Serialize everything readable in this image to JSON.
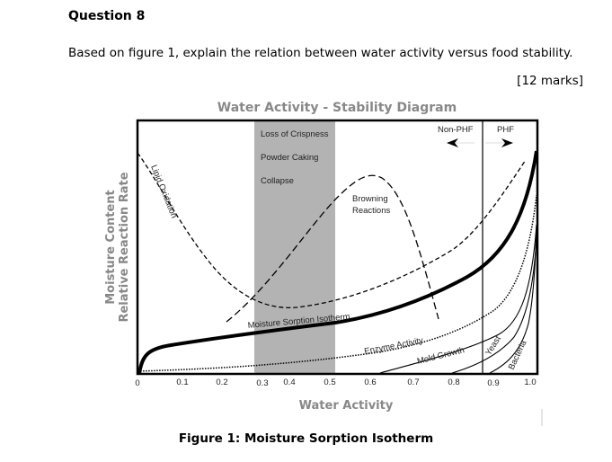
{
  "question": {
    "title": "Question 8",
    "text": "Based on figure 1, explain the relation between water activity versus food stability.",
    "marks": "[12 marks]"
  },
  "figure": {
    "title": "Water Activity - Stability Diagram",
    "xlabel": "Water Activity",
    "ylabel_line1": "Moisture Content",
    "ylabel_line2": "Relative Reaction Rate",
    "xticks": [
      "0",
      "0.1",
      "0.2",
      "0.3",
      "0.4",
      "0.5",
      "0.6",
      "0.7",
      "0.8",
      "0.9",
      "1.0"
    ],
    "band_labels": [
      "Loss of Crispness",
      "Powder Caking",
      "Collapse"
    ],
    "browning": [
      "Browning",
      "Reactions"
    ],
    "lipid": "Lipid Oxidation",
    "isotherm": "Moisture Sorption Isotherm",
    "enzyme": "Enzyme Activity",
    "mold": "Mold Growth",
    "yeast": "Yeast",
    "bacteria": "Bacteria",
    "non_phf": "Non-PHF",
    "phf": "PHF",
    "band_color": "#b3b3b3"
  },
  "caption": "Figure 1: Moisture Sorption Isotherm"
}
